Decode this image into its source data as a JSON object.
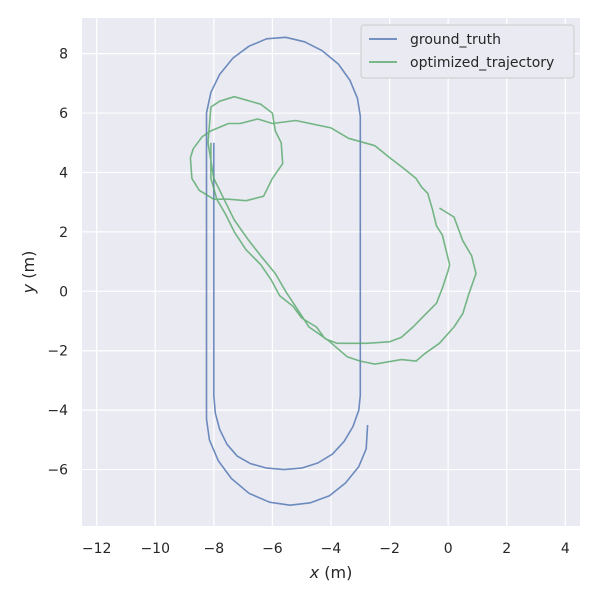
{
  "chart_data": {
    "type": "line",
    "xlabel_var": "x",
    "xlabel_unit": " (m)",
    "ylabel_var": "y",
    "ylabel_unit": " (m)",
    "xlim": [
      -12.5,
      4.5
    ],
    "ylim": [
      -7.9,
      9.2
    ],
    "x_ticks": [
      -12,
      -10,
      -8,
      -6,
      -4,
      -2,
      0,
      2,
      4
    ],
    "y_ticks": [
      -6,
      -4,
      -2,
      0,
      2,
      4,
      6,
      8
    ],
    "x_tick_labels": [
      "−12",
      "−10",
      "−8",
      "−6",
      "−4",
      "−2",
      "0",
      "2",
      "4"
    ],
    "y_tick_labels": [
      "−6",
      "−4",
      "−2",
      "0",
      "2",
      "4",
      "6",
      "8"
    ],
    "grid": true,
    "legend_position": "top-right",
    "series": [
      {
        "name": "ground_truth",
        "color": "#4c72b0",
        "points": [
          [
            -8.0,
            5.0
          ],
          [
            -8.0,
            3.0
          ],
          [
            -8.0,
            1.0
          ],
          [
            -8.0,
            -1.0
          ],
          [
            -8.0,
            -3.0
          ],
          [
            -8.0,
            -3.5
          ],
          [
            -7.95,
            -4.1
          ],
          [
            -7.8,
            -4.65
          ],
          [
            -7.55,
            -5.15
          ],
          [
            -7.2,
            -5.55
          ],
          [
            -6.75,
            -5.8
          ],
          [
            -6.2,
            -5.95
          ],
          [
            -5.6,
            -6.0
          ],
          [
            -5.0,
            -5.95
          ],
          [
            -4.45,
            -5.78
          ],
          [
            -3.95,
            -5.48
          ],
          [
            -3.55,
            -5.05
          ],
          [
            -3.25,
            -4.55
          ],
          [
            -3.05,
            -4.0
          ],
          [
            -3.0,
            -3.5
          ],
          [
            -3.0,
            -2.0
          ],
          [
            -3.0,
            0.0
          ],
          [
            -3.0,
            2.0
          ],
          [
            -3.0,
            4.0
          ],
          [
            -3.0,
            5.9
          ],
          [
            -3.1,
            6.5
          ],
          [
            -3.35,
            7.1
          ],
          [
            -3.75,
            7.65
          ],
          [
            -4.3,
            8.1
          ],
          [
            -4.9,
            8.4
          ],
          [
            -5.55,
            8.55
          ],
          [
            -6.2,
            8.5
          ],
          [
            -6.8,
            8.25
          ],
          [
            -7.35,
            7.85
          ],
          [
            -7.8,
            7.3
          ],
          [
            -8.1,
            6.7
          ],
          [
            -8.25,
            6.0
          ],
          [
            -8.25,
            4.0
          ],
          [
            -8.25,
            2.0
          ],
          [
            -8.25,
            0.0
          ],
          [
            -8.25,
            -2.0
          ],
          [
            -8.25,
            -4.3
          ],
          [
            -8.15,
            -5.0
          ],
          [
            -7.85,
            -5.7
          ],
          [
            -7.4,
            -6.3
          ],
          [
            -6.8,
            -6.8
          ],
          [
            -6.1,
            -7.1
          ],
          [
            -5.4,
            -7.2
          ],
          [
            -4.7,
            -7.12
          ],
          [
            -4.05,
            -6.88
          ],
          [
            -3.5,
            -6.45
          ],
          [
            -3.05,
            -5.9
          ],
          [
            -2.8,
            -5.3
          ],
          [
            -2.75,
            -4.5
          ]
        ]
      },
      {
        "name": "optimized_trajectory",
        "color": "#55a868",
        "points": [
          [
            -8.1,
            5.0
          ],
          [
            -8.1,
            3.8
          ],
          [
            -7.9,
            3.1
          ],
          [
            -7.6,
            2.6
          ],
          [
            -7.3,
            2.0
          ],
          [
            -6.9,
            1.4
          ],
          [
            -6.4,
            0.9
          ],
          [
            -6.05,
            0.4
          ],
          [
            -5.75,
            -0.15
          ],
          [
            -5.3,
            -0.5
          ],
          [
            -5.0,
            -0.9
          ],
          [
            -4.5,
            -1.2
          ],
          [
            -4.2,
            -1.6
          ],
          [
            -3.8,
            -1.75
          ],
          [
            -3.3,
            -1.75
          ],
          [
            -2.8,
            -1.75
          ],
          [
            -2.0,
            -1.7
          ],
          [
            -1.6,
            -1.55
          ],
          [
            -1.2,
            -1.2
          ],
          [
            -0.8,
            -0.8
          ],
          [
            -0.4,
            -0.4
          ],
          [
            -0.2,
            0.1
          ],
          [
            0.0,
            0.7
          ],
          [
            0.05,
            0.9
          ],
          [
            -0.2,
            1.9
          ],
          [
            -0.4,
            2.2
          ],
          [
            -0.55,
            2.8
          ],
          [
            -0.7,
            3.3
          ],
          [
            -0.9,
            3.5
          ],
          [
            -1.1,
            3.8
          ],
          [
            -1.6,
            4.2
          ],
          [
            -2.0,
            4.5
          ],
          [
            -2.5,
            4.9
          ],
          [
            -3.4,
            5.15
          ],
          [
            -4.0,
            5.5
          ],
          [
            -5.2,
            5.75
          ],
          [
            -6.0,
            5.65
          ],
          [
            -6.5,
            5.8
          ],
          [
            -7.1,
            5.65
          ],
          [
            -7.5,
            5.65
          ],
          [
            -8.1,
            5.4
          ],
          [
            -8.4,
            5.2
          ],
          [
            -8.7,
            4.8
          ],
          [
            -8.8,
            4.5
          ],
          [
            -8.75,
            3.8
          ],
          [
            -8.5,
            3.4
          ],
          [
            -8.0,
            3.1
          ],
          [
            -7.5,
            3.1
          ],
          [
            -6.9,
            3.05
          ],
          [
            -6.3,
            3.2
          ],
          [
            -6.0,
            3.8
          ],
          [
            -5.65,
            4.3
          ],
          [
            -5.7,
            5.0
          ],
          [
            -5.9,
            5.4
          ],
          [
            -6.0,
            6.0
          ],
          [
            -6.4,
            6.3
          ],
          [
            -7.3,
            6.55
          ],
          [
            -7.8,
            6.4
          ],
          [
            -8.1,
            6.2
          ],
          [
            -8.2,
            5.0
          ],
          [
            -8.0,
            3.8
          ],
          [
            -7.6,
            3.0
          ],
          [
            -7.3,
            2.4
          ],
          [
            -6.8,
            1.7
          ],
          [
            -6.4,
            1.2
          ],
          [
            -5.9,
            0.6
          ],
          [
            -5.55,
            0.0
          ],
          [
            -5.25,
            -0.45
          ],
          [
            -4.75,
            -1.2
          ],
          [
            -4.1,
            -1.65
          ],
          [
            -3.45,
            -2.2
          ],
          [
            -3.0,
            -2.35
          ],
          [
            -2.5,
            -2.45
          ],
          [
            -1.6,
            -2.3
          ],
          [
            -1.1,
            -2.35
          ],
          [
            -0.8,
            -2.1
          ],
          [
            -0.3,
            -1.75
          ],
          [
            0.2,
            -1.2
          ],
          [
            0.5,
            -0.75
          ],
          [
            0.7,
            -0.1
          ],
          [
            0.95,
            0.6
          ],
          [
            0.8,
            1.2
          ],
          [
            0.5,
            1.7
          ],
          [
            0.2,
            2.5
          ],
          [
            -0.3,
            2.8
          ]
        ]
      }
    ]
  }
}
